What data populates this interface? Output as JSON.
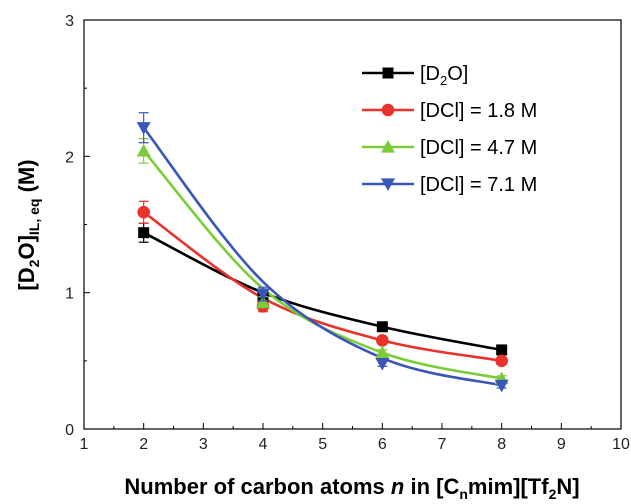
{
  "chart_data": {
    "type": "line",
    "xlabel": {
      "prefix": "Number of carbon atoms ",
      "var": "n",
      "middle": " in [C",
      "sub1": "n",
      "middle2": "mim][Tf",
      "sub2": "2",
      "suffix": "N]"
    },
    "ylabel": {
      "part1": "[D",
      "sub1": "2",
      "part2": "O]",
      "sub2": "IL, eq",
      "part3": " (M)"
    },
    "xlim": [
      1,
      10
    ],
    "ylim": [
      0,
      3
    ],
    "xticks": [
      1,
      2,
      3,
      4,
      5,
      6,
      7,
      8,
      9,
      10
    ],
    "yticks": [
      0,
      1,
      2,
      3
    ],
    "legend_position": "top-right",
    "grid": false,
    "series": [
      {
        "key": "d2o",
        "name": "[D2O]",
        "label_parts": [
          "[D",
          "2",
          "O]"
        ],
        "color": "#000000",
        "marker": "square",
        "x": [
          2,
          4,
          6,
          8
        ],
        "y": [
          1.44,
          0.97,
          0.75,
          0.58
        ],
        "yerr": [
          0.07,
          0.03,
          0.02,
          0.02
        ],
        "curve_y": [
          1.44,
          1.0,
          0.75,
          0.58
        ]
      },
      {
        "key": "dcl18",
        "name": "[DCl] = 1.8 M",
        "color": "#e8322b",
        "marker": "circle",
        "x": [
          2,
          4,
          6,
          8
        ],
        "y": [
          1.59,
          0.9,
          0.65,
          0.5
        ],
        "yerr": [
          0.08,
          0.04,
          0.02,
          0.02
        ],
        "curve_y": [
          1.59,
          0.96,
          0.65,
          0.5
        ]
      },
      {
        "key": "dcl47",
        "name": "[DCl] = 4.7 M",
        "color": "#7ccc3a",
        "marker": "triangle-up",
        "x": [
          2,
          4,
          6,
          8
        ],
        "y": [
          2.04,
          0.93,
          0.56,
          0.37
        ],
        "yerr": [
          0.09,
          0.04,
          0.02,
          0.02
        ],
        "curve_y": [
          2.04,
          1.03,
          0.56,
          0.37
        ]
      },
      {
        "key": "dcl71",
        "name": "[DCl] = 7.1 M",
        "color": "#3a56b8",
        "marker": "triangle-down",
        "x": [
          2,
          4,
          6,
          8
        ],
        "y": [
          2.21,
          0.99,
          0.48,
          0.32
        ],
        "yerr": [
          0.11,
          0.05,
          0.02,
          0.02
        ],
        "curve_y": [
          2.21,
          1.08,
          0.52,
          0.32
        ]
      }
    ]
  }
}
